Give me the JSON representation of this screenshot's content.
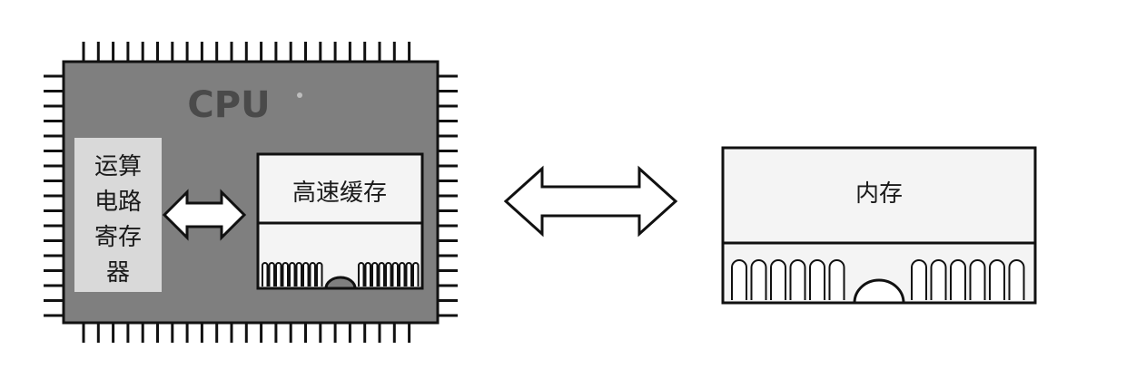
{
  "cpu": {
    "label": "CPU",
    "alu_lines": [
      "运算",
      "电路",
      "寄存",
      "器"
    ],
    "cache_label": "高速缓存"
  },
  "memory": {
    "label": "内存"
  },
  "colors": {
    "chip_fill": "#7f7f7f",
    "cpu_text": "#4a4a4a",
    "alu_fill": "#d9d9d9",
    "box_fill": "#f4f4f4",
    "outline": "#111111",
    "text": "#1a1a1a"
  }
}
